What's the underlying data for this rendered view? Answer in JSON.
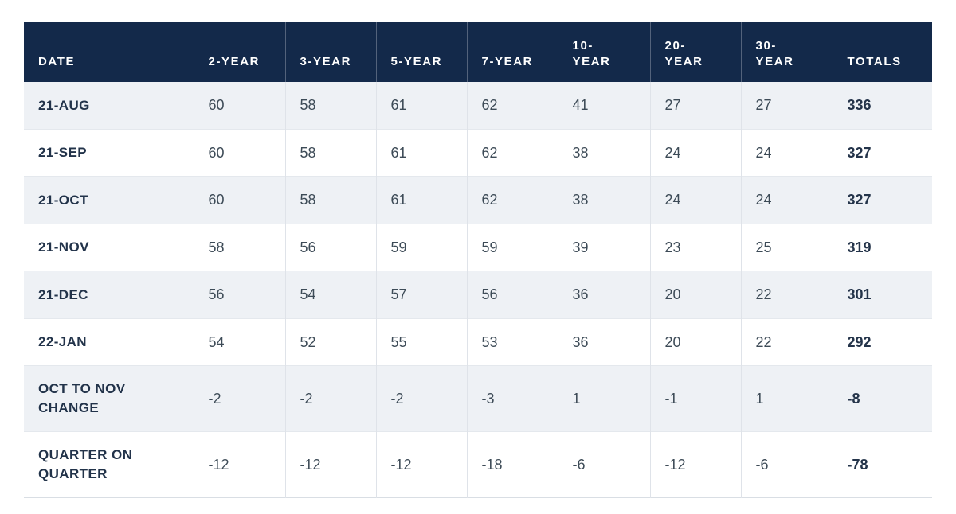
{
  "chart_data": {
    "type": "table",
    "columns": [
      "DATE",
      "2-YEAR",
      "3-YEAR",
      "5-YEAR",
      "7-YEAR",
      "10-YEAR",
      "20-YEAR",
      "30-YEAR",
      "TOTALS"
    ],
    "rows": [
      {
        "label": "21-AUG",
        "values": [
          "60",
          "58",
          "61",
          "62",
          "41",
          "27",
          "27"
        ],
        "total": "336"
      },
      {
        "label": "21-SEP",
        "values": [
          "60",
          "58",
          "61",
          "62",
          "38",
          "24",
          "24"
        ],
        "total": "327"
      },
      {
        "label": "21-OCT",
        "values": [
          "60",
          "58",
          "61",
          "62",
          "38",
          "24",
          "24"
        ],
        "total": "327"
      },
      {
        "label": "21-NOV",
        "values": [
          "58",
          "56",
          "59",
          "59",
          "39",
          "23",
          "25"
        ],
        "total": "319"
      },
      {
        "label": "21-DEC",
        "values": [
          "56",
          "54",
          "57",
          "56",
          "36",
          "20",
          "22"
        ],
        "total": "301"
      },
      {
        "label": "22-JAN",
        "values": [
          "54",
          "52",
          "55",
          "53",
          "36",
          "20",
          "22"
        ],
        "total": "292"
      },
      {
        "label": "OCT TO NOV CHANGE",
        "values": [
          "-2",
          "-2",
          "-2",
          "-3",
          "1",
          "-1",
          "1"
        ],
        "total": "-8"
      },
      {
        "label": "QUARTER ON QUARTER",
        "values": [
          "-12",
          "-12",
          "-12",
          "-18",
          "-6",
          "-12",
          "-6"
        ],
        "total": "-78"
      }
    ]
  },
  "colors": {
    "header_bg": "#13294a",
    "header_text": "#ffffff",
    "header_divider": "#53627b",
    "row_bg": "#ffffff",
    "row_alt_bg": "#eef1f5",
    "cell_divider": "#dfe3e9",
    "row_divider": "#e4e8ed",
    "label_text": "#22334a",
    "value_text": "#3d4b57",
    "total_text": "#24344a"
  }
}
